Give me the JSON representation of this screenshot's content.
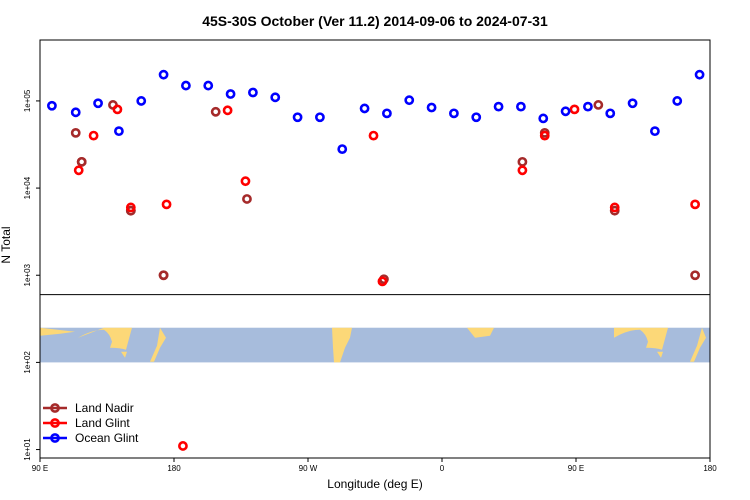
{
  "chart_data": {
    "type": "scatter",
    "title": "45S-30S October (Ver 11.2)   2014-09-06 to 2024-07-31",
    "xlabel": "Longitude (deg E)",
    "ylabel": "N Total",
    "y_scale": "log",
    "xlim": [
      90,
      540
    ],
    "ylim": [
      8,
      500000
    ],
    "x_ticks": [
      {
        "value": 90,
        "label": "90 E"
      },
      {
        "value": 180,
        "label": "180"
      },
      {
        "value": 270,
        "label": "90 W"
      },
      {
        "value": 360,
        "label": "0"
      },
      {
        "value": 450,
        "label": "90 E"
      },
      {
        "value": 540,
        "label": "180"
      }
    ],
    "y_ticks": [
      {
        "value": 10,
        "label": "1e+01"
      },
      {
        "value": 100,
        "label": "1e+02"
      },
      {
        "value": 1000,
        "label": "1e+03"
      },
      {
        "value": 10000,
        "label": "1e+04"
      },
      {
        "value": 100000,
        "label": "1e+05"
      }
    ],
    "separator_y": 600,
    "map_band": {
      "y_top": 250,
      "y_bottom": 100,
      "ocean_color": "#A7BCDC",
      "land_color": "#FCD878"
    },
    "legend_position": "bottom-left",
    "grid": false,
    "series": [
      {
        "name": "Land Nadir",
        "color": "#A52A2A",
        "points": [
          [
            118,
            20000
          ],
          [
            151,
            5500
          ],
          [
            173,
            1000
          ],
          [
            229,
            7500
          ],
          [
            321,
            900
          ],
          [
            208,
            75000
          ],
          [
            118,
            20000
          ],
          [
            151,
            5500
          ],
          [
            173,
            1000
          ],
          [
            114,
            43000
          ],
          [
            139,
            90000
          ],
          [
            414,
            20000
          ],
          [
            429,
            43000
          ],
          [
            465,
            90000
          ],
          [
            476,
            5500
          ],
          [
            530,
            1000
          ]
        ]
      },
      {
        "name": "Land Glint",
        "color": "#FF0000",
        "points": [
          [
            116,
            16000
          ],
          [
            126,
            40000
          ],
          [
            142,
            80000
          ],
          [
            151,
            6000
          ],
          [
            175,
            6500
          ],
          [
            186,
            11
          ],
          [
            216,
            78000
          ],
          [
            228,
            12000
          ],
          [
            314,
            40000
          ],
          [
            320,
            850
          ],
          [
            414,
            16000
          ],
          [
            429,
            40000
          ],
          [
            449,
            80000
          ],
          [
            476,
            6000
          ],
          [
            530,
            6500
          ]
        ]
      },
      {
        "name": "Ocean Glint",
        "color": "#0000FF",
        "points": [
          [
            98,
            88000
          ],
          [
            114,
            74000
          ],
          [
            129,
            94000
          ],
          [
            143,
            45000
          ],
          [
            158,
            100000
          ],
          [
            173,
            200000
          ],
          [
            188,
            150000
          ],
          [
            203,
            150000
          ],
          [
            218,
            120000
          ],
          [
            233,
            125000
          ],
          [
            248,
            110000
          ],
          [
            263,
            65000
          ],
          [
            278,
            65000
          ],
          [
            293,
            28000
          ],
          [
            308,
            82000
          ],
          [
            323,
            72000
          ],
          [
            338,
            102000
          ],
          [
            353,
            84000
          ],
          [
            368,
            72000
          ],
          [
            383,
            65000
          ],
          [
            398,
            86000
          ],
          [
            413,
            86000
          ],
          [
            428,
            63000
          ],
          [
            443,
            76000
          ],
          [
            458,
            86000
          ],
          [
            473,
            72000
          ],
          [
            488,
            94000
          ],
          [
            503,
            45000
          ],
          [
            518,
            100000
          ],
          [
            533,
            200000
          ]
        ]
      }
    ]
  }
}
